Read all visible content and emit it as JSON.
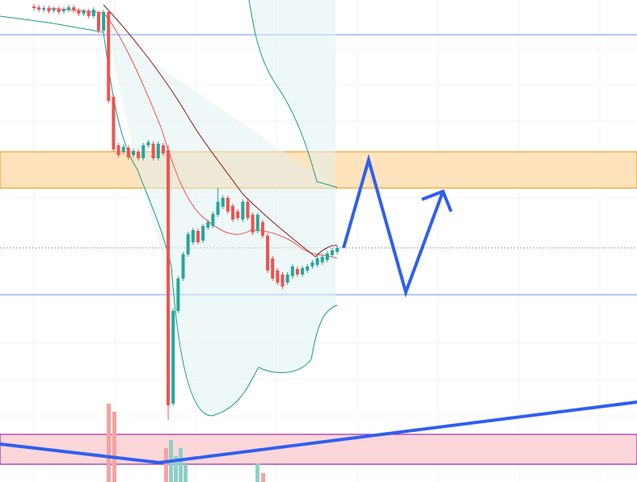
{
  "chart_data": {
    "type": "candlestick",
    "ylim": [
      0,
      597
    ],
    "up_color": "#26a69a",
    "down_color": "#ef5350",
    "ohlc": [
      [
        589,
        592,
        584,
        587
      ],
      [
        588,
        591,
        582,
        585
      ],
      [
        585,
        590,
        582,
        587
      ],
      [
        587,
        590,
        580,
        583
      ],
      [
        584,
        589,
        581,
        586
      ],
      [
        586,
        589,
        579,
        582
      ],
      [
        583,
        588,
        580,
        585
      ],
      [
        585,
        591,
        582,
        588
      ],
      [
        588,
        591,
        581,
        584
      ],
      [
        584,
        587,
        577,
        580
      ],
      [
        580,
        586,
        577,
        583
      ],
      [
        583,
        586,
        574,
        577
      ],
      [
        577,
        588,
        574,
        585
      ],
      [
        581,
        584,
        556,
        559
      ],
      [
        559,
        585,
        556,
        582
      ],
      [
        582,
        585,
        469,
        472
      ],
      [
        477,
        480,
        409,
        412
      ],
      [
        417,
        420,
        402,
        405
      ],
      [
        409,
        418,
        406,
        415
      ],
      [
        414,
        417,
        399,
        402
      ],
      [
        405,
        413,
        402,
        410
      ],
      [
        409,
        412,
        398,
        401
      ],
      [
        401,
        420,
        398,
        417
      ],
      [
        417,
        424,
        414,
        421
      ],
      [
        419,
        422,
        398,
        401
      ],
      [
        401,
        422,
        398,
        419
      ],
      [
        417,
        420,
        404,
        407
      ],
      [
        411,
        417,
        77,
        95
      ],
      [
        97,
        215,
        94,
        212
      ],
      [
        212,
        255,
        209,
        252
      ],
      [
        252,
        285,
        249,
        282
      ],
      [
        282,
        310,
        279,
        307
      ],
      [
        297,
        315,
        294,
        312
      ],
      [
        311,
        314,
        294,
        297
      ],
      [
        299,
        320,
        296,
        317
      ],
      [
        315,
        325,
        312,
        322
      ],
      [
        317,
        335,
        314,
        332
      ],
      [
        331,
        365,
        328,
        347
      ],
      [
        341,
        355,
        338,
        352
      ],
      [
        352,
        355,
        332,
        335
      ],
      [
        342,
        345,
        322,
        325
      ],
      [
        335,
        338,
        324,
        327
      ],
      [
        325,
        350,
        322,
        347
      ],
      [
        347,
        350,
        324,
        327
      ],
      [
        331,
        334,
        306,
        309
      ],
      [
        311,
        334,
        308,
        331
      ],
      [
        322,
        325,
        302,
        305
      ],
      [
        305,
        308,
        259,
        262
      ],
      [
        277,
        280,
        249,
        252
      ],
      [
        262,
        265,
        244,
        247
      ],
      [
        257,
        260,
        239,
        242
      ],
      [
        247,
        260,
        244,
        257
      ],
      [
        255,
        270,
        252,
        267
      ],
      [
        264,
        267,
        254,
        257
      ],
      [
        257,
        268,
        254,
        265
      ],
      [
        262,
        270,
        259,
        267
      ],
      [
        267,
        275,
        264,
        272
      ],
      [
        269,
        280,
        266,
        277
      ],
      [
        272,
        282,
        269,
        279
      ],
      [
        275,
        286,
        272,
        283
      ],
      [
        281,
        290,
        278,
        287
      ],
      [
        285,
        293,
        282,
        290
      ]
    ]
  }
}
